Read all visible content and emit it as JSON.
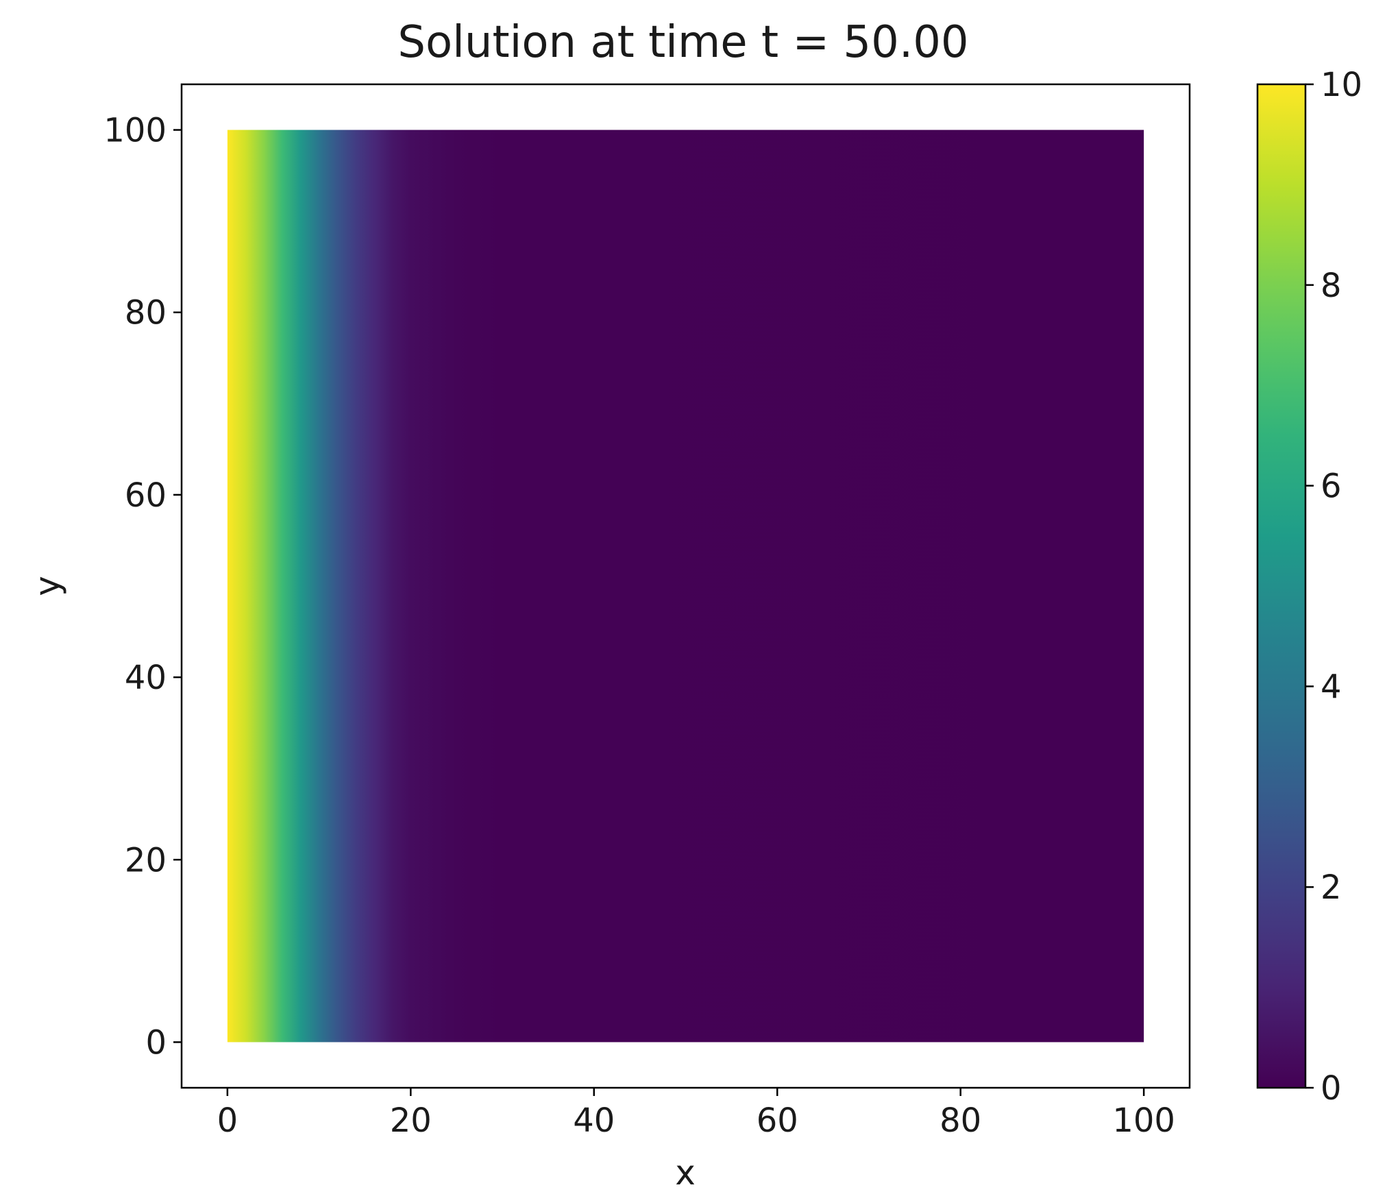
{
  "chart_data": {
    "type": "heatmap",
    "title": "Solution at time t = 50.00",
    "xlabel": "x",
    "ylabel": "y",
    "xlim": [
      -5,
      105
    ],
    "ylim": [
      -5,
      105
    ],
    "x_ticks": [
      0,
      20,
      40,
      60,
      80,
      100
    ],
    "y_ticks": [
      0,
      20,
      40,
      60,
      80,
      100
    ],
    "x_tick_labels": [
      "0",
      "20",
      "40",
      "60",
      "80",
      "100"
    ],
    "y_tick_labels": [
      "0",
      "20",
      "40",
      "60",
      "80",
      "100"
    ],
    "data_extent": {
      "x": [
        0,
        100
      ],
      "y": [
        0,
        100
      ]
    },
    "varies_along": "x",
    "profile": {
      "x": [
        0,
        2,
        4,
        6,
        8,
        10,
        12,
        14,
        16,
        18,
        20,
        25,
        30,
        100
      ],
      "value": [
        10,
        9.3,
        8.2,
        6.8,
        5.3,
        3.9,
        2.7,
        1.8,
        1.1,
        0.6,
        0.3,
        0.1,
        0.02,
        0
      ]
    },
    "colorbar": {
      "colormap": "viridis",
      "range": [
        0,
        10
      ],
      "ticks": [
        0,
        2,
        4,
        6,
        8,
        10
      ],
      "tick_labels": [
        "0",
        "2",
        "4",
        "6",
        "8",
        "10"
      ],
      "placement": "right"
    },
    "grid": false
  }
}
